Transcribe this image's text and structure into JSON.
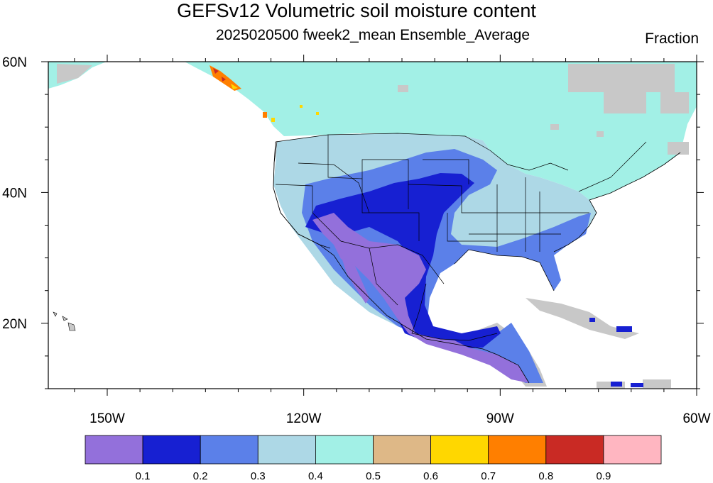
{
  "title": "GEFSv12 Volumetric soil moisture content",
  "subtitle": "2025020500 fweek2_mean Ensemble_Average",
  "units": "Fraction",
  "axes": {
    "lon_labels": [
      {
        "lon": -150,
        "text": "150W"
      },
      {
        "lon": -120,
        "text": "120W"
      },
      {
        "lon": -90,
        "text": "90W"
      },
      {
        "lon": -60,
        "text": "60W"
      }
    ],
    "lat_labels": [
      {
        "lat": 60,
        "text": "60N"
      },
      {
        "lat": 40,
        "text": "40N"
      },
      {
        "lat": 20,
        "text": "20N"
      }
    ],
    "lon_range": [
      -159,
      -60
    ],
    "lat_range": [
      10,
      60
    ]
  },
  "colorbar": {
    "colors": [
      "#9370db",
      "#1720d2",
      "#5b80e9",
      "#add8e6",
      "#a2f0e6",
      "#deb887",
      "#ffd700",
      "#ff7f00",
      "#c92a24",
      "#ffb6c1"
    ],
    "labels": [
      "0.1",
      "0.2",
      "0.3",
      "0.4",
      "0.5",
      "0.6",
      "0.7",
      "0.8",
      "0.9"
    ]
  },
  "map_colors": {
    "missing": "#c8c8c8",
    "border": "#000000"
  }
}
